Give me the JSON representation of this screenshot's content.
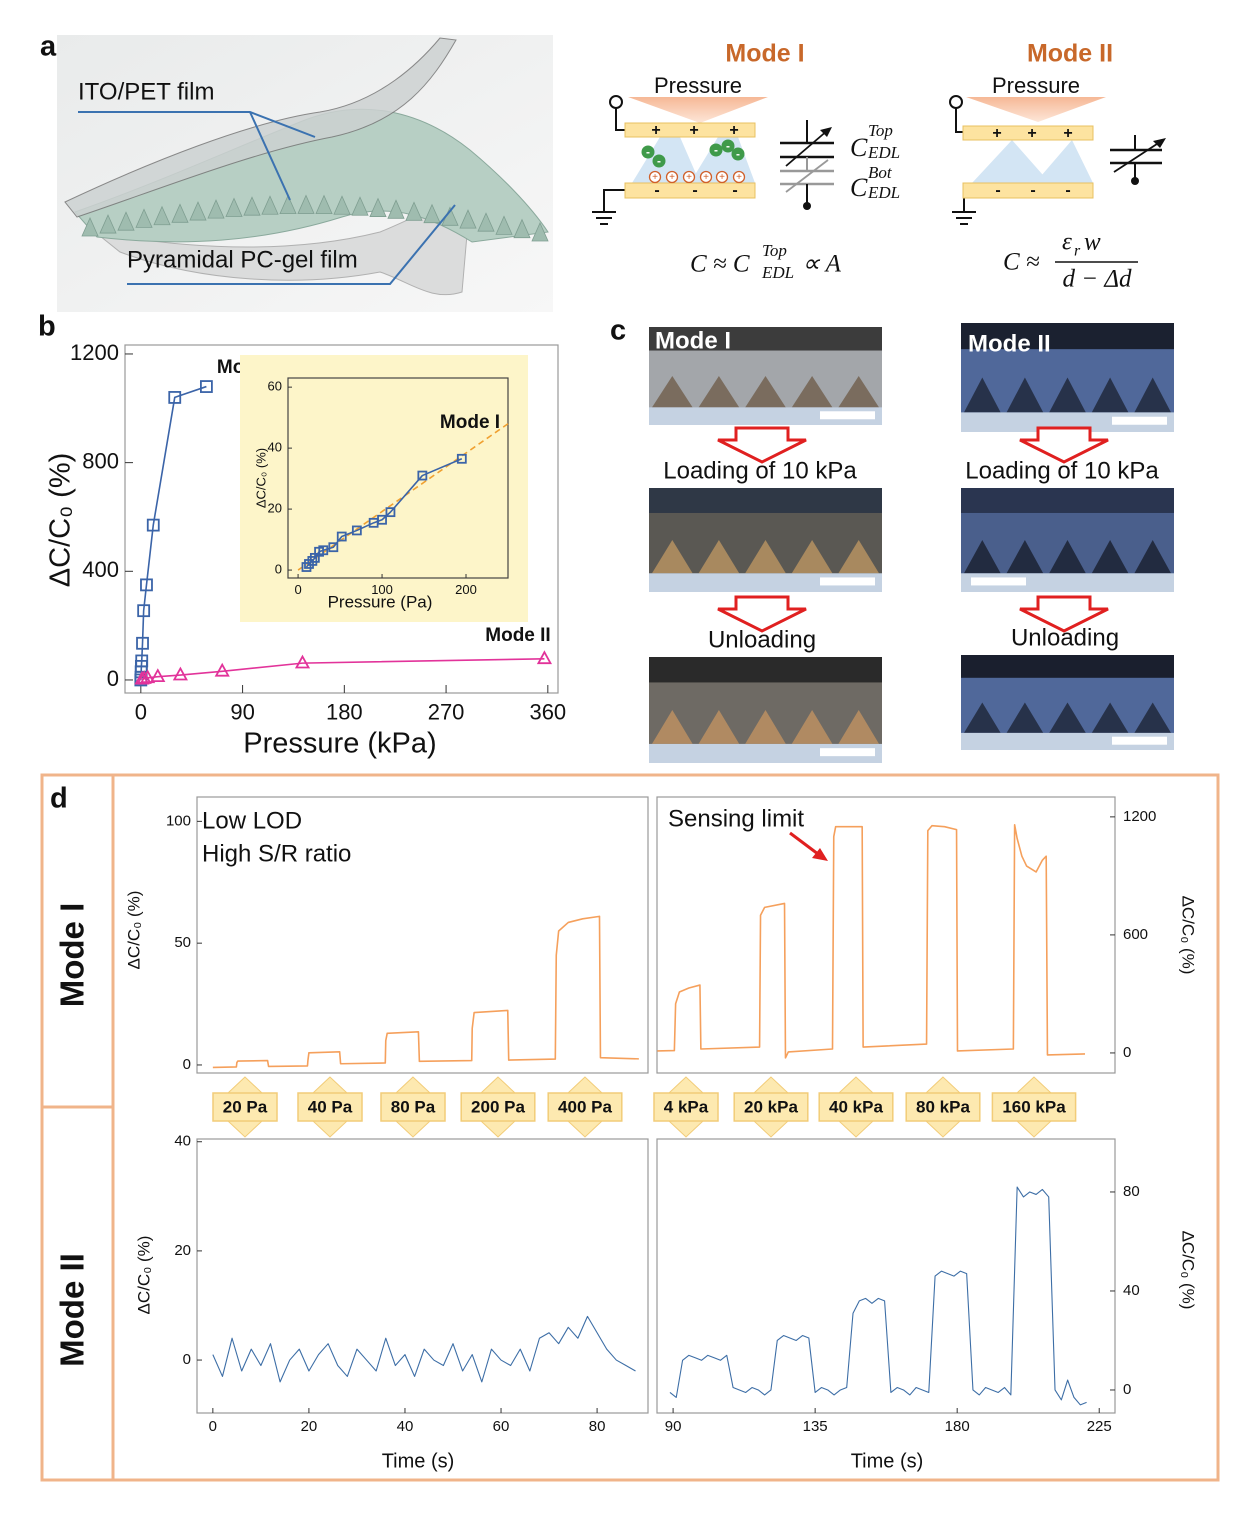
{
  "panel_labels": [
    "a",
    "b",
    "c",
    "d"
  ],
  "panel_a": {
    "film_top": "ITO/PET film",
    "film_bottom": "Pyramidal PC-gel film",
    "mode1": {
      "title": "Mode I",
      "pressure": "Pressure",
      "plus": "+",
      "minus": "-",
      "cap_top": {
        "symbol": "C",
        "sup": "Top",
        "sub": "EDL"
      },
      "cap_bot": {
        "symbol": "C",
        "sup": "Bot",
        "sub": "EDL"
      },
      "equation": {
        "lhs": "C ≈ C",
        "sup": "Top",
        "sub": "EDL",
        "rhs": "∝ A"
      }
    },
    "mode2": {
      "title": "Mode II",
      "pressure": "Pressure",
      "plus": "+",
      "minus": "-",
      "equation": {
        "lhs": "C ≈",
        "numerator": "ε",
        "numerator_sub": "r",
        "numerator_rest": "w",
        "denominator": "d − Δd"
      }
    }
  },
  "panel_c": {
    "columns": [
      {
        "title": "Mode I",
        "loading": "Loading of 10 kPa",
        "unloading": "Unloading"
      },
      {
        "title": "Mode II",
        "loading": "Loading of 10 kPa",
        "unloading": "Unloading"
      }
    ]
  },
  "panel_d": {
    "rows": [
      "Mode I",
      "Mode II"
    ],
    "pressures": [
      "20 Pa",
      "40 Pa",
      "80 Pa",
      "200 Pa",
      "400 Pa",
      "4 kPa",
      "20 kPa",
      "40 kPa",
      "80 kPa",
      "160 kPa"
    ]
  },
  "chart_data": [
    {
      "type": "line",
      "xlabel": "Pressure (kPa)",
      "ylabel": "ΔC/C₀ (%)",
      "xlim": [
        -14,
        369
      ],
      "ylim": [
        -48,
        1233
      ],
      "xticks": [
        0,
        90,
        180,
        270,
        360
      ],
      "yticks": [
        0,
        400,
        800,
        1200
      ],
      "series": [
        {
          "name": "Mode I",
          "color": "#3b64a8",
          "marker": "square",
          "x": [
            0,
            0.2,
            0.3,
            0.5,
            0.8,
            1.5,
            2.5,
            5,
            11,
            30,
            58
          ],
          "values": [
            0,
            10,
            30,
            50,
            70,
            135,
            255,
            350,
            570,
            1040,
            1080
          ]
        },
        {
          "name": "Mode II",
          "color": "#e2339a",
          "marker": "triangle",
          "x": [
            1,
            3,
            6,
            15,
            35,
            72,
            143,
            357
          ],
          "values": [
            3,
            5,
            8,
            12,
            18,
            32,
            62,
            78
          ]
        }
      ]
    },
    {
      "type": "line",
      "background": "#fdf5c9",
      "xlabel": "Pressure (Pa)",
      "ylabel": "ΔC/C₀ (%)",
      "xlim": [
        -12,
        250
      ],
      "ylim": [
        -2.6,
        63
      ],
      "xticks": [
        0,
        100,
        200
      ],
      "yticks": [
        0,
        20,
        40,
        60
      ],
      "series": [
        {
          "color": "#f0a030",
          "dash": true,
          "x": [
            0,
            250
          ],
          "values": [
            0,
            48
          ]
        },
        {
          "name": "Mode I",
          "color": "#3b64a8",
          "marker": "square",
          "x": [
            10,
            13,
            17,
            20,
            25,
            30,
            42,
            52,
            70,
            90,
            100,
            110,
            148,
            195
          ],
          "values": [
            1,
            2,
            3,
            4,
            6,
            6.5,
            7.5,
            11,
            13,
            15.5,
            16.5,
            19,
            31,
            36.5
          ]
        }
      ]
    },
    {
      "type": "line",
      "ylabel": "ΔC/C₀ (%)",
      "xlim": [
        -3.3,
        90.6
      ],
      "ylim": [
        -3.3,
        110
      ],
      "yticks": [
        0,
        50,
        100
      ],
      "annotations": [
        "Low LOD",
        "High S/R ratio"
      ],
      "series": [
        {
          "color": "#f5a05c",
          "x": [
            0,
            4.9,
            5,
            5.2,
            11.4,
            11.6,
            19.7,
            19.8,
            20,
            26.4,
            26.6,
            35.9,
            36,
            36.3,
            42.8,
            43,
            53.9,
            54,
            54.4,
            61.4,
            61.6,
            71.3,
            71.5,
            72,
            74,
            77,
            80.5,
            80.7,
            88.7
          ],
          "values": [
            -1,
            -0.8,
            1,
            1.6,
            1.8,
            -0.6,
            -0.4,
            2,
            5,
            5.4,
            0.5,
            0.8,
            10,
            13,
            13.6,
            1.5,
            1.8,
            15,
            21.5,
            22.4,
            2,
            2.4,
            45,
            55,
            58.5,
            60,
            61,
            3,
            2.5
          ]
        }
      ]
    },
    {
      "type": "line",
      "y2label": "ΔC/C₀ (%)",
      "xlim": [
        84.9,
        230
      ],
      "y2lim": [
        -102,
        1301
      ],
      "y2ticks": [
        0,
        600,
        1200
      ],
      "annotations": [
        "Sensing limit"
      ],
      "series": [
        {
          "color": "#f5a05c",
          "axis": "y2",
          "x": [
            85,
            90.4,
            90.8,
            92,
            95,
            98.5,
            98.8,
            117.4,
            117.7,
            119,
            125.3,
            125.6,
            126.5,
            140.5,
            140.9,
            141.5,
            149.9,
            150.2,
            170.3,
            170.7,
            172,
            176,
            179.8,
            180.1,
            197.8,
            198.2,
            199,
            200.5,
            202,
            205,
            207,
            208.2,
            208.6,
            220.5
          ],
          "values": [
            10,
            12,
            250,
            310,
            330,
            345,
            20,
            30,
            700,
            740,
            760,
            -25,
            5,
            20,
            1100,
            1150,
            1150,
            30,
            45,
            1130,
            1155,
            1150,
            1135,
            10,
            20,
            1160,
            1090,
            1000,
            950,
            920,
            980,
            1000,
            -10,
            -5
          ]
        }
      ]
    },
    {
      "type": "line",
      "xlabel": "Time (s)",
      "ylabel": "ΔC/C₀ (%)",
      "xlim": [
        -3.3,
        90.6
      ],
      "ylim": [
        -9.7,
        40.5
      ],
      "xticks": [
        0,
        20,
        40,
        60,
        80
      ],
      "yticks": [
        0,
        20,
        40
      ],
      "series": [
        {
          "color": "#3d6ea6",
          "x": [
            0,
            2,
            4,
            6,
            8,
            10,
            12,
            14,
            16,
            18,
            20,
            22,
            24,
            26,
            28,
            30,
            32,
            34,
            36,
            38,
            40,
            42,
            44,
            46,
            48,
            50,
            52,
            54,
            56,
            58,
            60,
            62,
            64,
            66,
            68,
            70,
            72,
            74,
            76,
            78,
            80,
            82,
            84,
            86,
            88
          ],
          "values": [
            1,
            -3,
            4,
            -2,
            2,
            -1,
            3,
            -4,
            0,
            2,
            -2,
            1,
            3,
            -1,
            -3,
            2,
            0,
            -2,
            4,
            -1,
            1,
            -3,
            2,
            0,
            -1,
            3,
            -2,
            1,
            -4,
            2,
            0,
            -1,
            2,
            -2,
            4,
            5,
            3,
            6,
            4,
            8,
            5,
            2,
            0,
            -1,
            -2
          ]
        }
      ]
    },
    {
      "type": "line",
      "xlabel": "Time (s)",
      "y2label": "ΔC/C₀ (%)",
      "xlim": [
        84.9,
        230
      ],
      "xticks": [
        90,
        135,
        180,
        225
      ],
      "y2lim": [
        -9.3,
        101.4
      ],
      "y2ticks": [
        0,
        40,
        80
      ],
      "series": [
        {
          "color": "#3d6ea6",
          "axis": "y2",
          "x": [
            89,
            91,
            93,
            95,
            97,
            99,
            101,
            103,
            105,
            107,
            109,
            111,
            113,
            115,
            117,
            119,
            121,
            123,
            125,
            127,
            129,
            131,
            133,
            135,
            137,
            139,
            141,
            143,
            145,
            147,
            149,
            151,
            153,
            155,
            157,
            159,
            161,
            163,
            165,
            167,
            169,
            171,
            173,
            175,
            177,
            179,
            181,
            183,
            185,
            187,
            189,
            191,
            193,
            195,
            197,
            199,
            201,
            203,
            205,
            207,
            209,
            211,
            213,
            215,
            217,
            219,
            221
          ],
          "values": [
            -1,
            -3,
            12,
            14,
            13,
            12,
            14,
            13,
            12,
            14,
            1,
            0,
            -1,
            1,
            0,
            -2,
            0,
            20,
            22,
            21,
            20,
            22,
            21,
            -1,
            1,
            0,
            -2,
            0,
            1,
            31,
            36,
            37,
            35,
            37,
            36,
            -1,
            1,
            0,
            -2,
            1,
            0,
            -1,
            46,
            48,
            47,
            46,
            48,
            47,
            0,
            -2,
            1,
            0,
            -1,
            1,
            -2,
            82,
            78,
            80,
            79,
            81,
            78,
            0,
            -4,
            4,
            -3,
            -6,
            -5
          ]
        }
      ]
    }
  ]
}
